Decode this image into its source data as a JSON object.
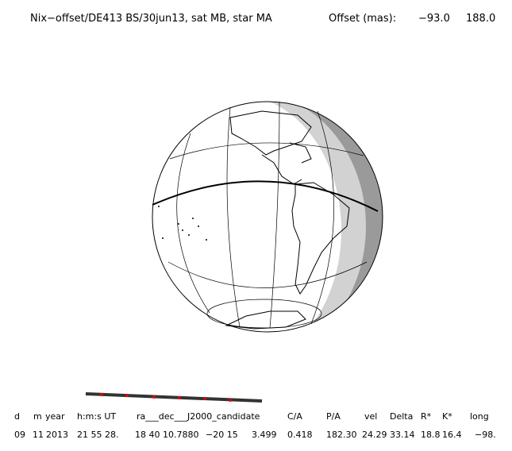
{
  "header": {
    "title": "Nix−offset/DE413 BS/30jun13, sat MB, star MA",
    "offset_label": "Offset (mas):",
    "offset_values": [
      "−93.0",
      "188.0"
    ]
  },
  "table": {
    "columns": [
      "d",
      "m",
      "year",
      "h:m:s UT",
      "ra___dec___J2000_candidate",
      "C/A",
      "P/A",
      "vel",
      "Delta",
      "R*",
      "K*",
      "long"
    ],
    "row": [
      "09",
      "11",
      "2013",
      "21 55 28.",
      "18 40 10.7880",
      "−20 15",
      "3.499",
      "0.418",
      "182.30",
      "24.29",
      "33.14",
      "18.8",
      "16.4",
      "−98."
    ]
  }
}
